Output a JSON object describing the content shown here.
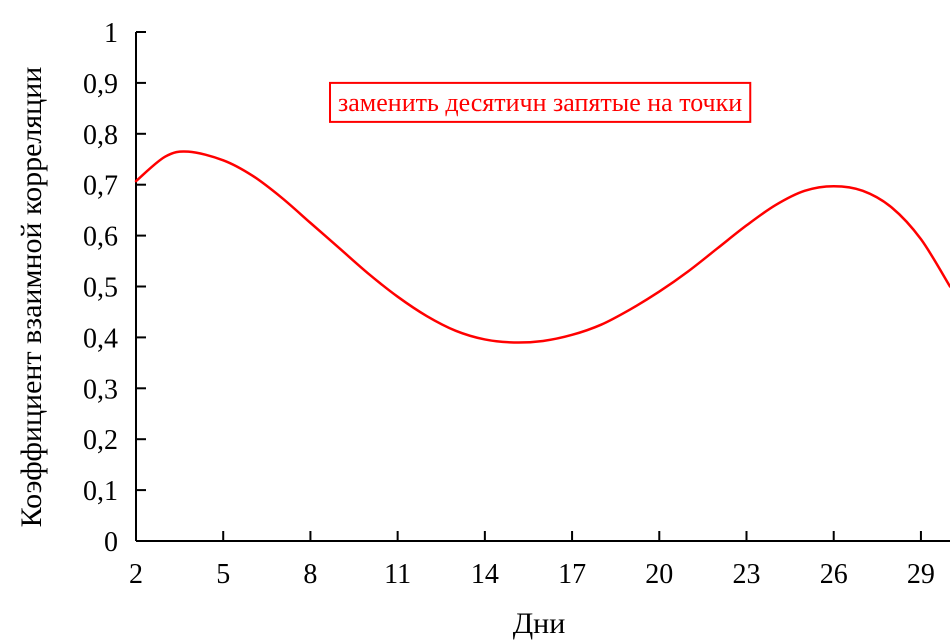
{
  "chart_data": {
    "type": "line",
    "title": "",
    "xlabel": "Дни",
    "ylabel": "Коэффициент взаимной корреляции",
    "xlim": [
      2,
      30
    ],
    "ylim": [
      0,
      1
    ],
    "x_ticks": [
      2,
      5,
      8,
      11,
      14,
      17,
      20,
      23,
      26,
      29
    ],
    "y_ticks": [
      0,
      0.1,
      0.2,
      0.3,
      0.4,
      0.5,
      0.6,
      0.7,
      0.8,
      0.9,
      1
    ],
    "y_tick_labels": [
      "0",
      "0,1",
      "0,2",
      "0,3",
      "0,4",
      "0,5",
      "0,6",
      "0,7",
      "0,8",
      "0,9",
      "1"
    ],
    "grid": false,
    "series": [
      {
        "color": "#ff0000",
        "x": [
          2,
          3,
          3.8,
          5,
          6,
          7,
          8,
          9,
          10,
          11,
          12,
          13,
          14,
          15,
          16,
          17,
          18,
          19,
          20,
          21,
          22,
          23,
          24,
          25,
          26,
          27,
          28,
          29,
          30
        ],
        "y": [
          0.707,
          0.755,
          0.765,
          0.748,
          0.718,
          0.675,
          0.625,
          0.575,
          0.525,
          0.48,
          0.442,
          0.413,
          0.396,
          0.39,
          0.393,
          0.405,
          0.425,
          0.455,
          0.49,
          0.53,
          0.575,
          0.62,
          0.66,
          0.688,
          0.697,
          0.688,
          0.655,
          0.593,
          0.5
        ]
      }
    ],
    "annotation": {
      "text": "заменить десятичн запятые на точки",
      "color": "#ff0000",
      "x": 15.9,
      "y": 0.845
    }
  }
}
